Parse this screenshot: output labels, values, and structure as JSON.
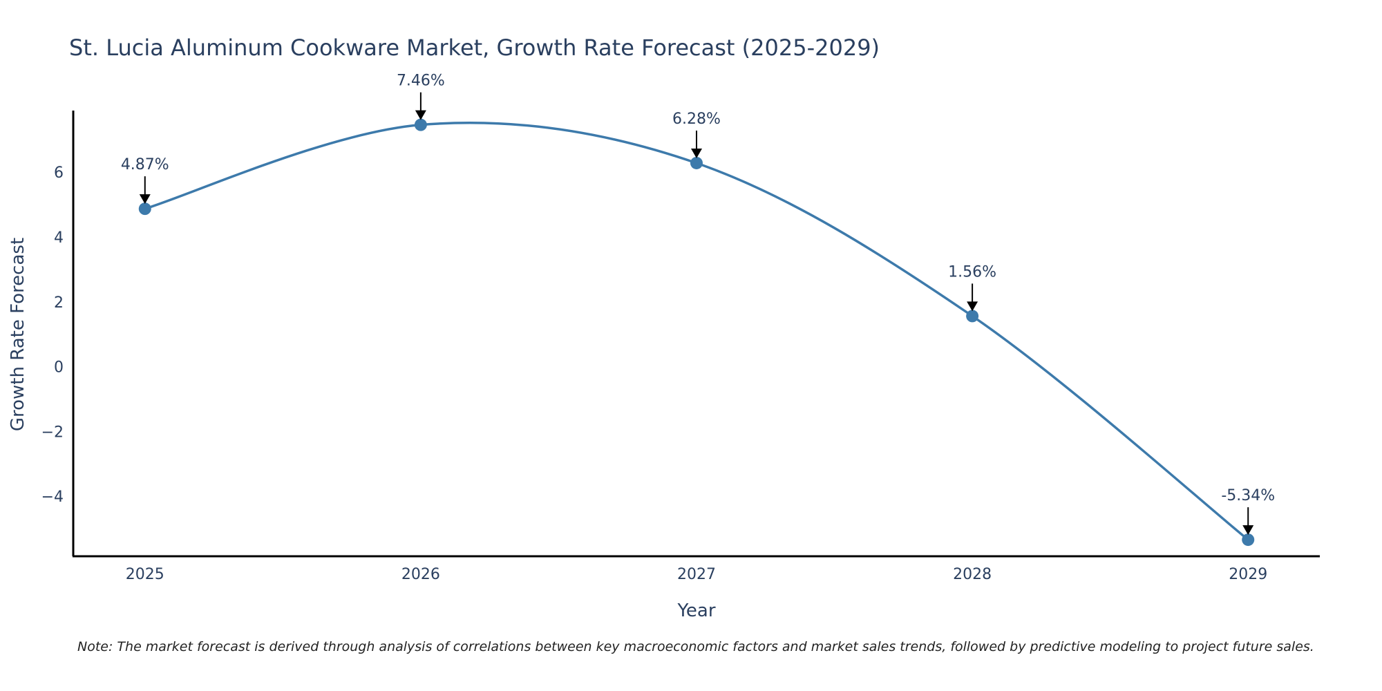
{
  "chart_data": {
    "type": "line",
    "title": "St. Lucia Aluminum Cookware Market, Growth Rate Forecast (2025-2029)",
    "xlabel": "Year",
    "ylabel": "Growth Rate Forecast",
    "categories": [
      "2025",
      "2026",
      "2027",
      "2028",
      "2029"
    ],
    "series": [
      {
        "name": "Growth Rate Forecast",
        "values": [
          4.87,
          7.46,
          6.28,
          1.56,
          -5.34
        ],
        "labels": [
          "4.87%",
          "7.46%",
          "6.28%",
          "1.56%",
          "-5.34%"
        ]
      }
    ],
    "y_ticks": [
      6,
      4,
      2,
      0,
      -2,
      -4
    ],
    "y_tick_labels": [
      "6",
      "4",
      "2",
      "0",
      "−2",
      "−4"
    ],
    "ylim": [
      -5.85,
      7.9
    ],
    "xlim": [
      -0.26,
      4.26
    ],
    "grid": false,
    "line_shape": "spline",
    "colors": {
      "line": "#3d7aab",
      "marker": "#3d7aab",
      "axis": "#000000",
      "arrow": "#000000"
    },
    "note": "Note: The market forecast is derived through analysis of correlations between key macroeconomic factors and market sales trends, followed by predictive modeling to project future sales."
  }
}
